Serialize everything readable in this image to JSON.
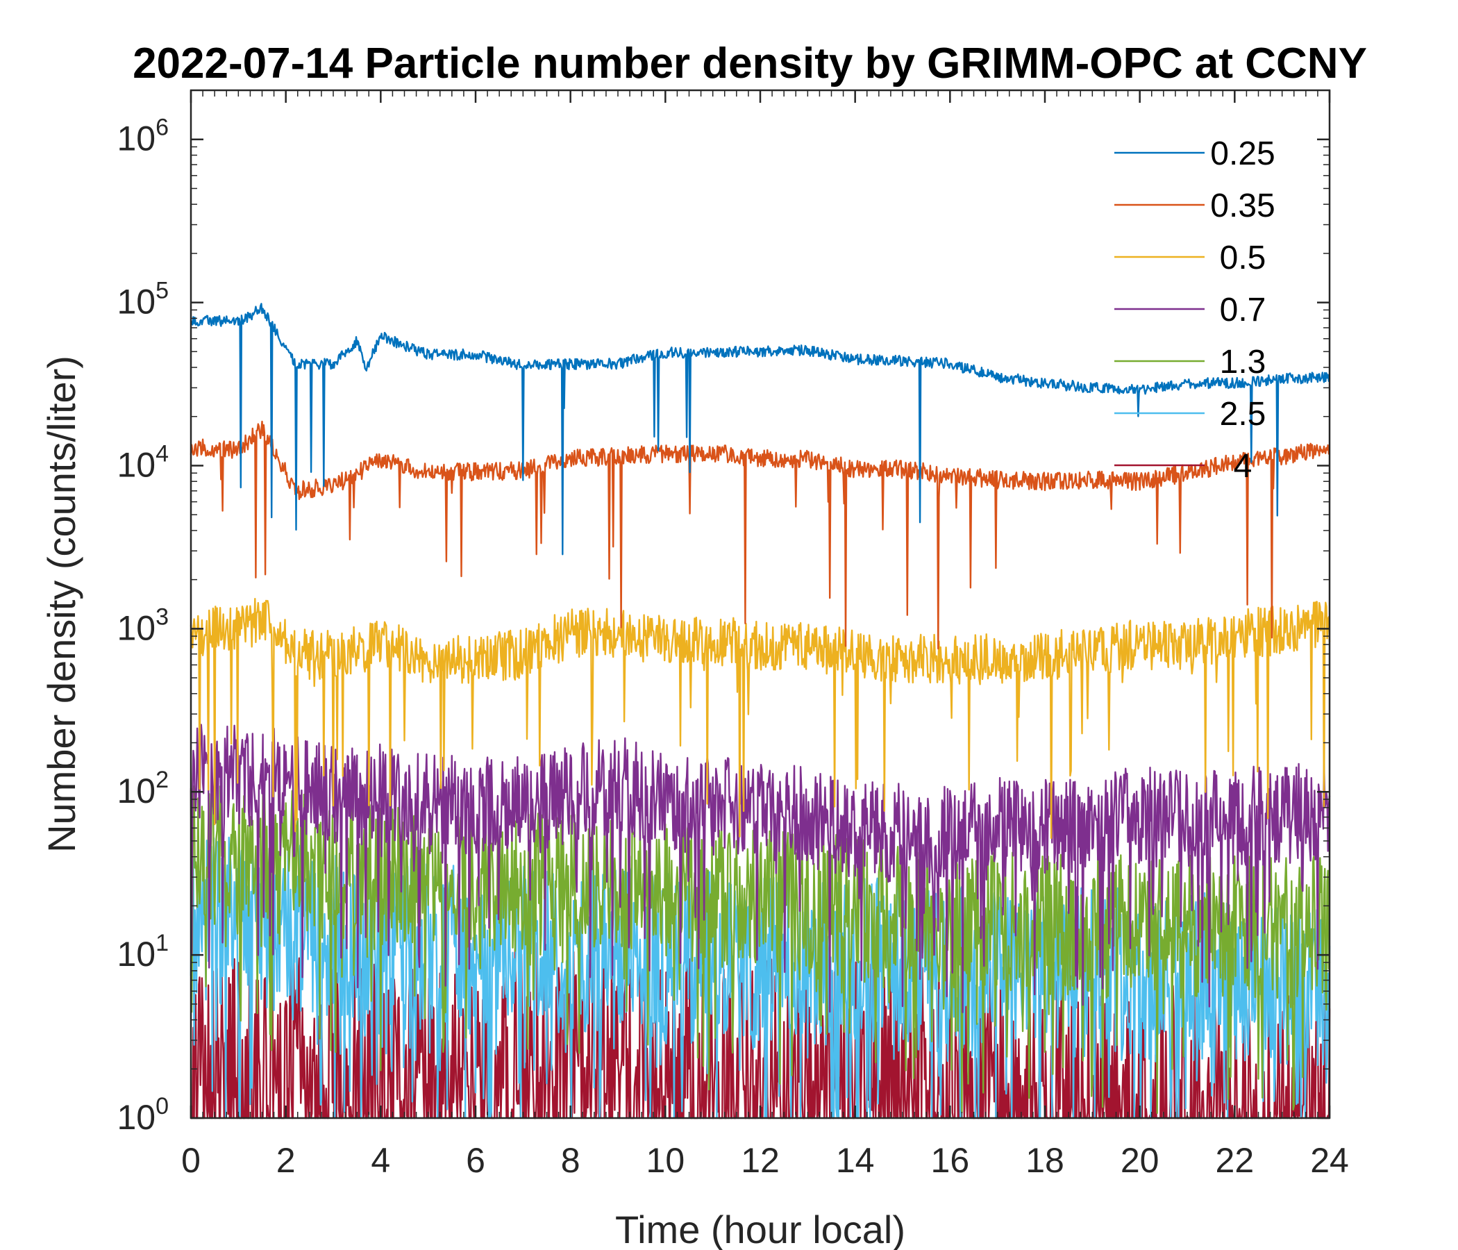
{
  "chart_data": {
    "type": "line",
    "title": "2022-07-14 Particle number density by GRIMM-OPC at CCNY",
    "xlabel": "Time (hour local)",
    "ylabel": "Number density (counts/liter)",
    "xlim": [
      0,
      24
    ],
    "ylim": [
      1,
      2000000
    ],
    "yscale": "log",
    "xticks": [
      0,
      2,
      4,
      6,
      8,
      10,
      12,
      14,
      16,
      18,
      20,
      22,
      24
    ],
    "yticks": [
      {
        "value": 1,
        "base": "10",
        "exp": "0"
      },
      {
        "value": 10,
        "base": "10",
        "exp": "1"
      },
      {
        "value": 100,
        "base": "10",
        "exp": "2"
      },
      {
        "value": 1000,
        "base": "10",
        "exp": "3"
      },
      {
        "value": 10000,
        "base": "10",
        "exp": "4"
      },
      {
        "value": 100000,
        "base": "10",
        "exp": "5"
      },
      {
        "value": 1000000,
        "base": "10",
        "exp": "6"
      }
    ],
    "legend_position": "top-right",
    "series": [
      {
        "name": "0.25",
        "color": "#0072BD",
        "noise": 0.015,
        "spikes": 0.01,
        "x": [
          0,
          1,
          1.5,
          2.2,
          3,
          3.5,
          3.7,
          4,
          5,
          6,
          7,
          8,
          9,
          9.5,
          10,
          11,
          12,
          13,
          14,
          15,
          16,
          17,
          18,
          19,
          20,
          21,
          22,
          23,
          24
        ],
        "y": [
          78000,
          76000,
          92000,
          42000,
          42000,
          58000,
          40000,
          62000,
          48000,
          48000,
          41000,
          42000,
          42000,
          46000,
          49000,
          50000,
          50000,
          51000,
          45000,
          44000,
          42000,
          35000,
          32000,
          30000,
          29000,
          32000,
          32000,
          34000,
          35000
        ]
      },
      {
        "name": "0.35",
        "color": "#D95319",
        "noise": 0.025,
        "spikes": 0.02,
        "x": [
          0,
          1,
          1.5,
          2.2,
          3,
          3.5,
          4,
          5,
          6,
          7,
          8,
          9,
          10,
          11,
          12,
          13,
          14,
          15,
          16,
          17,
          18,
          19,
          20,
          21,
          22,
          23,
          24
        ],
        "y": [
          13000,
          12500,
          17000,
          7000,
          7500,
          9000,
          11000,
          9000,
          9200,
          9300,
          11000,
          11500,
          11800,
          12000,
          11000,
          11000,
          9500,
          9500,
          8800,
          8200,
          8000,
          8200,
          8000,
          9000,
          10500,
          11500,
          12500
        ]
      },
      {
        "name": "0.5",
        "color": "#EDB120",
        "noise": 0.07,
        "spikes": 0.05,
        "x": [
          0,
          1,
          1.5,
          2.2,
          3,
          4,
          5,
          6,
          7,
          8,
          9,
          10,
          11,
          12,
          13,
          14,
          15,
          16,
          17,
          18,
          19,
          20,
          21,
          22,
          23,
          24
        ],
        "y": [
          950,
          1000,
          1150,
          700,
          700,
          800,
          650,
          650,
          700,
          950,
          950,
          850,
          850,
          780,
          780,
          700,
          650,
          650,
          650,
          680,
          750,
          800,
          800,
          900,
          1000,
          1100
        ]
      },
      {
        "name": "0.7",
        "color": "#7E2F8E",
        "noise": 0.14,
        "spikes": 0.1,
        "x": [
          0,
          1,
          2,
          3,
          4,
          5,
          6,
          7,
          8,
          9,
          10,
          11,
          12,
          13,
          14,
          15,
          16,
          17,
          18,
          19,
          20,
          21,
          22,
          23,
          24
        ],
        "y": [
          130,
          130,
          120,
          95,
          100,
          85,
          85,
          80,
          95,
          110,
          85,
          80,
          80,
          70,
          60,
          55,
          55,
          60,
          60,
          65,
          70,
          70,
          70,
          72,
          80
        ]
      },
      {
        "name": "1.3",
        "color": "#77AC30",
        "noise": 0.2,
        "spikes": 0.12,
        "x": [
          0,
          2,
          4,
          6,
          8,
          10,
          12,
          14,
          16,
          18,
          20,
          22,
          24
        ],
        "y": [
          42,
          38,
          30,
          28,
          28,
          25,
          22,
          20,
          17,
          15,
          15,
          15,
          15
        ]
      },
      {
        "name": "2.5",
        "color": "#4DBEEE",
        "noise": 0.24,
        "spikes": 0.15,
        "x": [
          0,
          2,
          4,
          6,
          8,
          10,
          12,
          14,
          16,
          18,
          20,
          22,
          24
        ],
        "y": [
          16,
          15,
          12,
          11,
          11,
          10,
          10,
          9,
          8,
          8,
          7.5,
          7,
          7
        ]
      },
      {
        "name": "4",
        "color": "#A2142F",
        "noise": 0.3,
        "spikes": 0.3,
        "x": [
          0,
          4,
          8,
          12,
          16,
          20,
          24
        ],
        "y": [
          2.2,
          2.2,
          2.8,
          2.6,
          2.0,
          1.5,
          1.3
        ]
      }
    ]
  }
}
